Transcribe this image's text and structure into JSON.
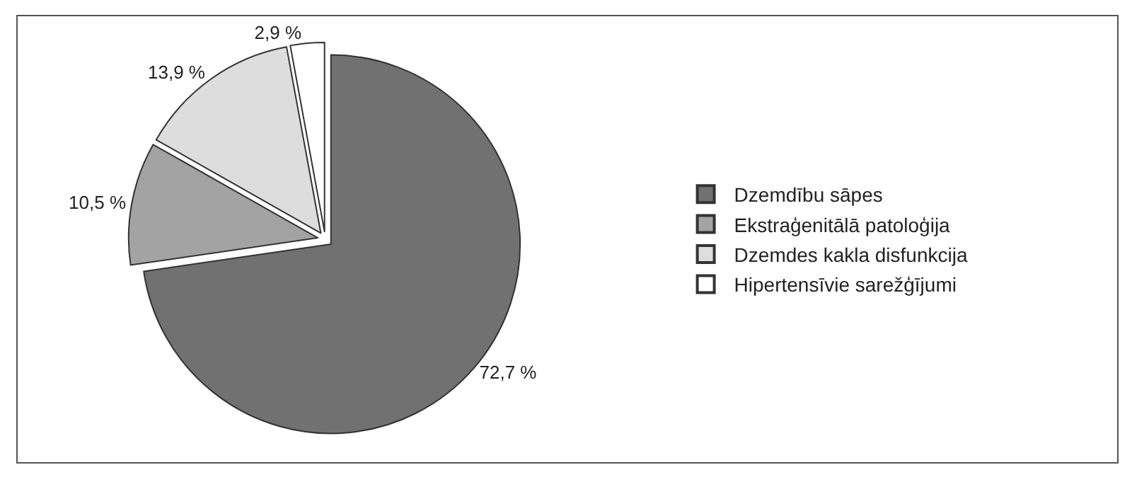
{
  "chart_data": {
    "type": "pie",
    "categories": [
      "Dzemdību sāpes",
      "Ekstraģenitālā patoloģija",
      "Dzemdes kakla disfunkcija",
      "Hipertensīvie sarežģījumi"
    ],
    "values": [
      72.7,
      10.5,
      13.9,
      2.9
    ],
    "value_labels": [
      "72,7 %",
      "10,5 %",
      "13,9 %",
      "2,9 %"
    ],
    "colors": [
      "#717171",
      "#a3a3a3",
      "#dddddd",
      "#ffffff"
    ],
    "legend": "right"
  }
}
